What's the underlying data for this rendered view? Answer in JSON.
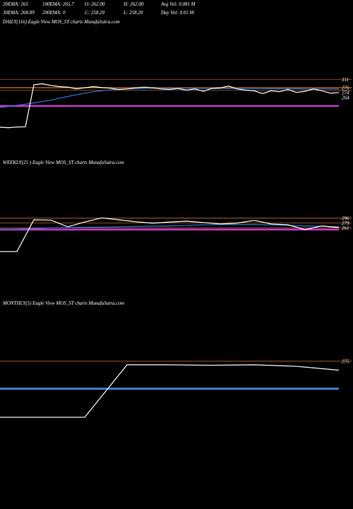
{
  "header": {
    "row1": [
      "20EMA: 265",
      "100EMA: 265.7",
      "O: 262.00",
      "H: 262.00",
      "Avg Vol: 0.081 M"
    ],
    "row2": [
      "30EMA: 268.89",
      "200EMA: 0",
      "C: 258.20",
      "L: 258.20",
      "Day Vol: 0.01 M"
    ]
  },
  "chart_data": [
    {
      "type": "line",
      "title": "DAILY(116) Eagle  View  MOS_ST charts MunafaSutra.com",
      "ylim": [
        0,
        560
      ],
      "levels": [
        311,
        276,
        274,
        264
      ],
      "level_color": "#b8651f",
      "series": [
        {
          "color": "#cc33cc",
          "width": 2.5,
          "values": [
            197,
            197,
            197,
            197,
            197,
            197,
            197,
            197,
            197,
            197,
            197,
            197,
            197,
            197,
            197,
            197,
            197,
            197,
            197,
            197,
            197,
            197,
            197,
            197,
            197,
            197,
            197,
            197,
            197,
            197,
            197,
            197,
            197,
            197,
            197,
            197,
            197,
            197,
            197,
            197,
            197
          ]
        },
        {
          "color": "#2f6fd6",
          "width": 1.2,
          "values": [
            191,
            195,
            200,
            205,
            210,
            216,
            222,
            230,
            238,
            245,
            252,
            258,
            262,
            266,
            268,
            270,
            271,
            272,
            273,
            273,
            273,
            273,
            273,
            272,
            272,
            272,
            272,
            272,
            272,
            272,
            272,
            272,
            271,
            271,
            271,
            271,
            270,
            270,
            270,
            270,
            270
          ]
        },
        {
          "color": "#ffffff",
          "width": 1.2,
          "values": [
            106,
            104,
            107,
            108,
            288,
            292,
            285,
            280,
            278,
            270,
            275,
            280,
            276,
            273,
            268,
            270,
            275,
            278,
            275,
            270,
            268,
            272,
            265,
            270,
            260,
            272,
            275,
            282,
            270,
            265,
            262,
            250,
            262,
            258,
            268,
            255,
            260,
            270,
            262,
            252,
            255
          ]
        }
      ]
    },
    {
      "type": "line",
      "title": "WEEKLY(25                           ) Eagle  View  MOS_ST charts MunafaSutra.com",
      "ylim": [
        140,
        470
      ],
      "levels": [
        296,
        279,
        261
      ],
      "level_color": "#b8651f",
      "series": [
        {
          "color": "#cc33cc",
          "width": 2.5,
          "values": [
            255,
            255,
            255,
            255,
            255,
            255,
            255,
            255,
            255,
            255,
            255,
            255,
            255,
            255,
            255,
            255,
            255,
            255,
            255,
            255,
            255
          ]
        },
        {
          "color": "#2f6fd6",
          "width": 1.2,
          "values": [
            255,
            257,
            259,
            261,
            262,
            263,
            264,
            265,
            266,
            267,
            268,
            270,
            272,
            273,
            273,
            273,
            272,
            270,
            268,
            267,
            265
          ]
        },
        {
          "color": "#ffffff",
          "width": 1.2,
          "values": [
            176,
            176,
            290,
            289,
            265,
            282,
            297,
            290,
            283,
            278,
            282,
            285,
            280,
            275,
            278,
            288,
            275,
            272,
            255,
            268,
            262
          ]
        }
      ]
    },
    {
      "type": "line",
      "title": "MONTHLY(5) Eagle  View  MOS_ST charts MunafaSutra.com",
      "ylim": [
        0,
        472
      ],
      "levels": [
        275
      ],
      "level_color": "#b8651f",
      "series": [
        {
          "color": "#4a7fd6",
          "width": 3,
          "values": [
            167,
            167,
            167,
            167,
            167,
            167,
            167,
            167,
            167
          ]
        },
        {
          "color": "#ffffff",
          "width": 1.2,
          "values": [
            55,
            55,
            55,
            261,
            261,
            259,
            261,
            255,
            240
          ]
        }
      ]
    }
  ]
}
